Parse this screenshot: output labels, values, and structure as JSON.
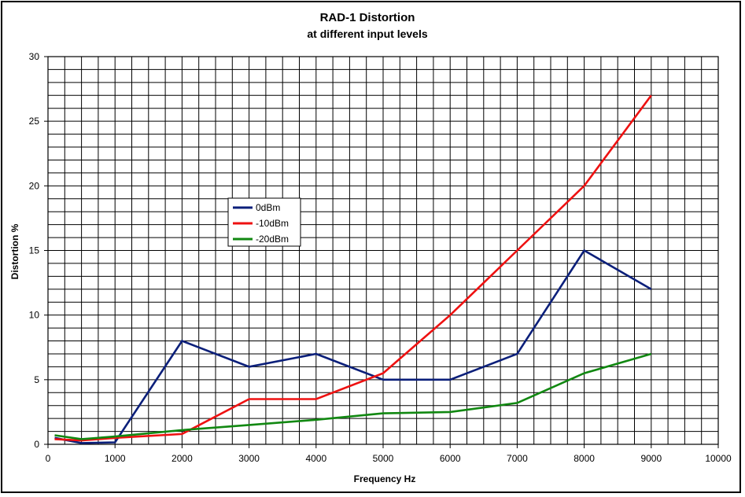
{
  "chart_data": {
    "type": "line",
    "title": "RAD-1 Distortion",
    "subtitle": "at different input levels",
    "xlabel": "Frequency Hz",
    "ylabel": "Distortion %",
    "xlim": [
      0,
      10000
    ],
    "ylim": [
      0,
      30
    ],
    "x_ticks": [
      0,
      1000,
      2000,
      3000,
      4000,
      5000,
      6000,
      7000,
      8000,
      9000,
      10000
    ],
    "y_ticks": [
      0,
      5,
      10,
      15,
      20,
      25,
      30
    ],
    "x_tick_labels": [
      "0",
      "1000",
      "2000",
      "3000",
      "4000",
      "5000",
      "6000",
      "7000",
      "8000",
      "9000",
      "10000"
    ],
    "y_tick_labels": [
      "0",
      "5",
      "10",
      "15",
      "20",
      "25",
      "30"
    ],
    "grid": true,
    "legend_position": "upper-left-center",
    "series": [
      {
        "name": "0dBm",
        "color": "#0b1f7a",
        "x": [
          100,
          500,
          1000,
          2000,
          3000,
          4000,
          5000,
          6000,
          7000,
          8000,
          9000
        ],
        "y": [
          0.5,
          0.1,
          0.15,
          8,
          6,
          7,
          5,
          5,
          7,
          15,
          12
        ]
      },
      {
        "name": "-10dBm",
        "color": "#ee1111",
        "x": [
          100,
          500,
          1000,
          2000,
          3000,
          4000,
          5000,
          6000,
          7000,
          8000,
          9000
        ],
        "y": [
          0.4,
          0.3,
          0.5,
          0.8,
          3.5,
          3.5,
          5.5,
          10,
          15,
          20,
          27
        ]
      },
      {
        "name": "-20dBm",
        "color": "#118811",
        "x": [
          100,
          500,
          1000,
          2000,
          3000,
          4000,
          5000,
          6000,
          7000,
          8000,
          9000
        ],
        "y": [
          0.7,
          0.4,
          0.6,
          1.1,
          1.5,
          1.9,
          2.4,
          2.5,
          3.2,
          5.5,
          7
        ]
      }
    ]
  }
}
